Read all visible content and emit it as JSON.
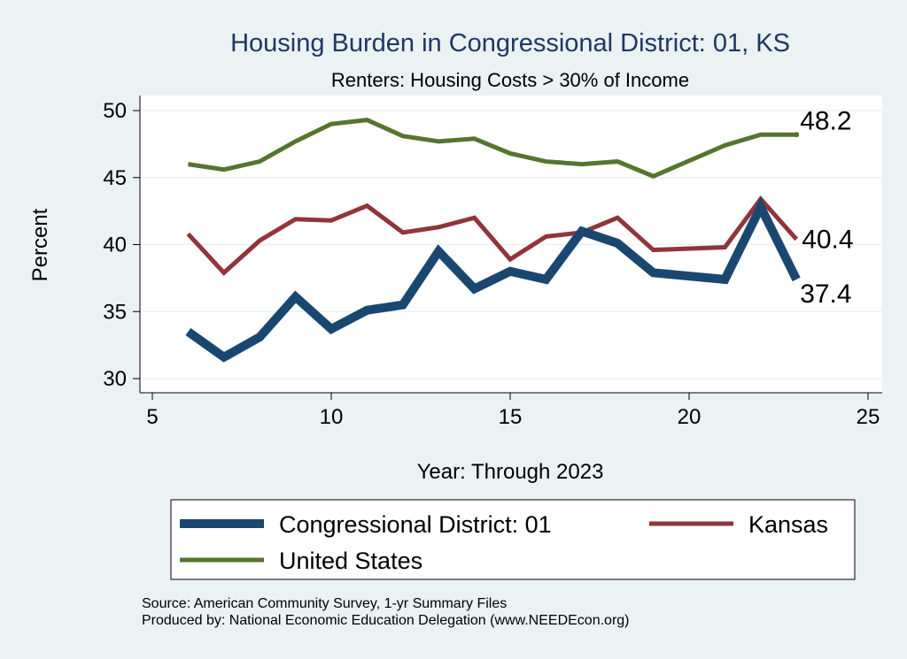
{
  "chart_data": {
    "type": "line",
    "title": "Housing Burden in Congressional District:  01, KS",
    "subtitle": "Renters: Housing Costs > 30% of Income",
    "xlabel": "Year: Through 2023",
    "ylabel": "Percent",
    "xlim": [
      5,
      25
    ],
    "ylim": [
      30,
      50
    ],
    "xticks": [
      "5",
      "10",
      "15",
      "20",
      "25"
    ],
    "yticks": [
      "30",
      "35",
      "40",
      "45",
      "50"
    ],
    "grid": true,
    "legend_position": "bottom",
    "series": [
      {
        "name": "Congressional District:  01",
        "color": "#1a476f",
        "x": [
          6,
          7,
          8,
          9,
          10,
          11,
          12,
          13,
          14,
          15,
          16,
          17,
          18,
          19,
          21,
          22,
          23
        ],
        "values": [
          33.5,
          31.6,
          33.1,
          36.1,
          33.7,
          35.1,
          35.5,
          39.5,
          36.7,
          38.0,
          37.4,
          41.0,
          40.1,
          37.9,
          37.4,
          42.8,
          37.4
        ],
        "end_label": "37.4"
      },
      {
        "name": "Kansas",
        "color": "#90353b",
        "x": [
          6,
          7,
          8,
          9,
          10,
          11,
          12,
          13,
          14,
          15,
          16,
          17,
          18,
          19,
          21,
          22,
          23
        ],
        "values": [
          40.8,
          37.9,
          40.3,
          41.9,
          41.8,
          42.9,
          40.9,
          41.3,
          42.0,
          38.9,
          40.6,
          40.9,
          42.0,
          39.6,
          39.8,
          43.4,
          40.4
        ],
        "end_label": "40.4"
      },
      {
        "name": "United States",
        "color": "#55752f",
        "x": [
          6,
          7,
          8,
          9,
          10,
          11,
          12,
          13,
          14,
          15,
          16,
          17,
          18,
          19,
          21,
          22,
          23
        ],
        "values": [
          46.0,
          45.6,
          46.2,
          47.7,
          49.0,
          49.3,
          48.1,
          47.7,
          47.9,
          46.8,
          46.2,
          46.0,
          46.2,
          45.1,
          47.4,
          48.2,
          48.2
        ],
        "end_label": "48.2"
      }
    ],
    "notes": [
      "Source: American Community Survey, 1-yr Summary Files",
      "Produced by: National Economic Education Delegation (www.NEEDEcon.org)"
    ]
  }
}
